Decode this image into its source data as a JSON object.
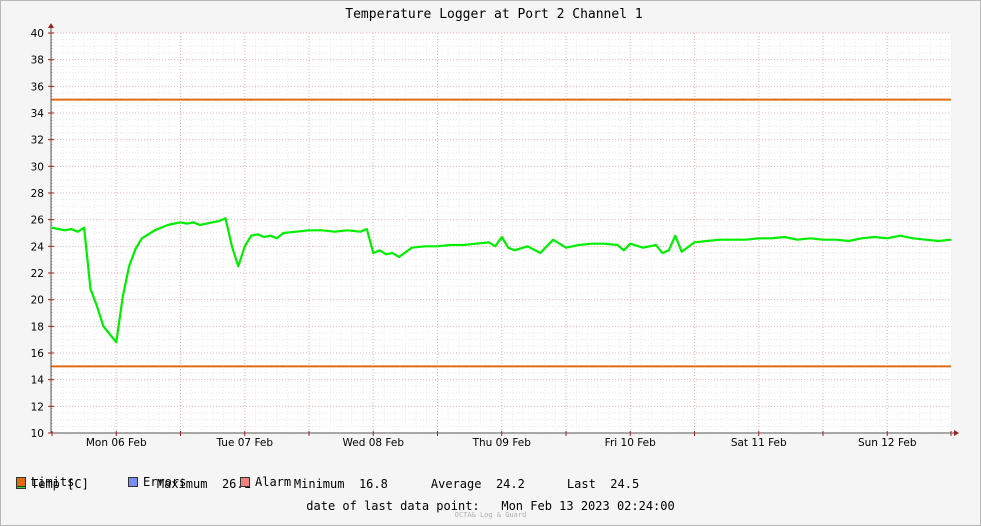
{
  "chart_data": {
    "type": "line",
    "title": "Temperature Logger at Port 2 Channel 1",
    "xlabel": "",
    "ylabel": "",
    "ylim": [
      10,
      40
    ],
    "yticks": [
      10,
      12,
      14,
      16,
      18,
      20,
      22,
      24,
      26,
      28,
      30,
      32,
      34,
      36,
      38,
      40
    ],
    "x_day_labels": [
      "Mon 06 Feb",
      "Tue 07 Feb",
      "Wed 08 Feb",
      "Thu 09 Feb",
      "Fri 10 Feb",
      "Sat 11 Feb",
      "Sun 12 Feb"
    ],
    "grid": true,
    "series": [
      {
        "name": "Temp [C]",
        "color": "#00ee00",
        "x_days": [
          0,
          0.05,
          0.1,
          0.15,
          0.2,
          0.25,
          0.3,
          0.35,
          0.4,
          0.45,
          0.5,
          0.55,
          0.6,
          0.65,
          0.7,
          0.8,
          0.9,
          1.0,
          1.05,
          1.1,
          1.15,
          1.2,
          1.25,
          1.3,
          1.35,
          1.4,
          1.45,
          1.5,
          1.55,
          1.6,
          1.65,
          1.7,
          1.75,
          1.8,
          1.9,
          2.0,
          2.1,
          2.2,
          2.3,
          2.4,
          2.45,
          2.5,
          2.55,
          2.6,
          2.65,
          2.7,
          2.8,
          2.9,
          3.0,
          3.1,
          3.2,
          3.3,
          3.4,
          3.45,
          3.5,
          3.55,
          3.6,
          3.7,
          3.8,
          3.9,
          4.0,
          4.1,
          4.2,
          4.3,
          4.4,
          4.45,
          4.5,
          4.6,
          4.7,
          4.75,
          4.8,
          4.85,
          4.9,
          5.0,
          5.1,
          5.2,
          5.3,
          5.4,
          5.5,
          5.6,
          5.7,
          5.8,
          5.9,
          6.0,
          6.1,
          6.2,
          6.3,
          6.4,
          6.5,
          6.6,
          6.7,
          6.8,
          6.9,
          7.0,
          7.05
        ],
        "values": [
          25.4,
          25.3,
          25.2,
          25.3,
          25.1,
          25.4,
          20.8,
          19.5,
          18.0,
          17.4,
          16.8,
          20.2,
          22.5,
          23.8,
          24.6,
          25.2,
          25.6,
          25.8,
          25.7,
          25.8,
          25.6,
          25.7,
          25.8,
          25.9,
          26.1,
          24.0,
          22.5,
          24.0,
          24.8,
          24.9,
          24.7,
          24.8,
          24.6,
          25.0,
          25.1,
          25.2,
          25.2,
          25.1,
          25.2,
          25.1,
          25.3,
          23.5,
          23.7,
          23.4,
          23.5,
          23.2,
          23.9,
          24.0,
          24.0,
          24.1,
          24.1,
          24.2,
          24.3,
          24.0,
          24.7,
          23.9,
          23.7,
          24.0,
          23.5,
          24.5,
          23.9,
          24.1,
          24.2,
          24.2,
          24.1,
          23.7,
          24.2,
          23.9,
          24.1,
          23.5,
          23.7,
          24.8,
          23.6,
          24.3,
          24.4,
          24.5,
          24.5,
          24.5,
          24.6,
          24.6,
          24.7,
          24.5,
          24.6,
          24.5,
          24.5,
          24.4,
          24.6,
          24.7,
          24.6,
          24.8,
          24.6,
          24.5,
          24.4,
          24.5,
          24.5
        ]
      },
      {
        "name": "Limits",
        "color": "#e06a10",
        "values_constant": [
          35,
          15
        ]
      }
    ]
  },
  "legend": {
    "temp": {
      "label": "Temp [C]",
      "color": "#22dd22"
    },
    "stats": {
      "max_label": "Maximum",
      "max_value": "26.1",
      "min_label": "Minimum",
      "min_value": "16.8",
      "avg_label": "Average",
      "avg_value": "24.2",
      "last_label": "Last",
      "last_value": "24.5"
    },
    "limits": {
      "label": "Limits",
      "color": "#e06a10"
    },
    "errors": {
      "label": "Errors",
      "color": "#7a8cf0"
    },
    "alarm": {
      "label": "Alarm",
      "color": "#f08080"
    }
  },
  "footer": {
    "last_point_label": "date of last data point:",
    "last_point_value": "Mon Feb 13 2023 02:24:00",
    "watermark": "OCTA& Log & Guard"
  }
}
